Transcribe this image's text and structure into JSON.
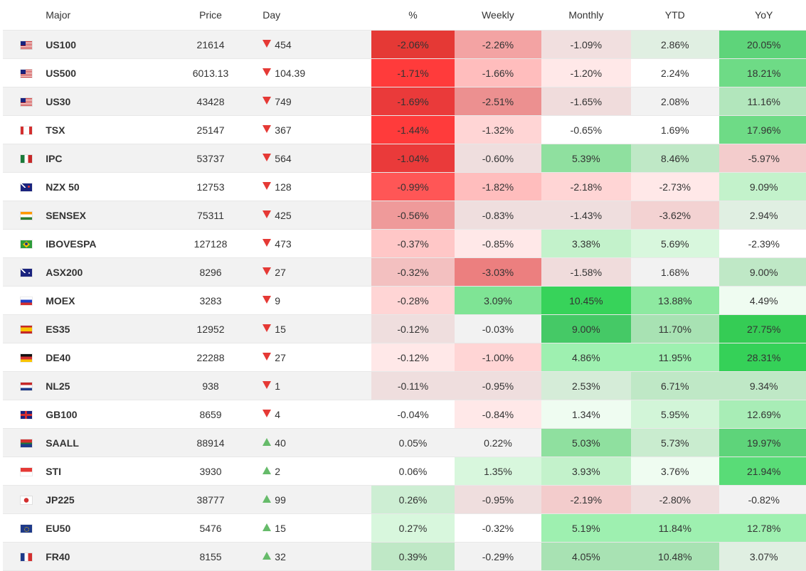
{
  "headers": {
    "name": "Major",
    "price": "Price",
    "day": "Day",
    "pct": "%",
    "weekly": "Weekly",
    "monthly": "Monthly",
    "ytd": "YTD",
    "yoy": "YoY"
  },
  "rows": [
    {
      "flag": "us-flag-icon",
      "name": "US100",
      "price": "21614",
      "dir": "down",
      "day": "454",
      "pct": "-2.06%",
      "weekly": "-2.26%",
      "monthly": "-1.09%",
      "ytd": "2.86%",
      "yoy": "20.05%",
      "colors": {
        "pct": "#e53935",
        "weekly": "#f3a3a3",
        "monthly": "#f1dfdf",
        "ytd": "#e0efe2",
        "yoy": "#5ed47a"
      }
    },
    {
      "flag": "us-flag-icon",
      "name": "US500",
      "price": "6013.13",
      "dir": "down",
      "day": "104.39",
      "pct": "-1.71%",
      "weekly": "-1.66%",
      "monthly": "-1.20%",
      "ytd": "2.24%",
      "yoy": "18.21%",
      "colors": {
        "pct": "#ff3b3b",
        "weekly": "#ffbdbd",
        "monthly": "#ffe8e8",
        "ytd": "#ffffff",
        "yoy": "#6edb86"
      }
    },
    {
      "flag": "us-flag-icon",
      "name": "US30",
      "price": "43428",
      "dir": "down",
      "day": "749",
      "pct": "-1.69%",
      "weekly": "-2.51%",
      "monthly": "-1.65%",
      "ytd": "2.08%",
      "yoy": "11.16%",
      "colors": {
        "pct": "#ea3a3a",
        "weekly": "#ec9090",
        "monthly": "#f0dcdc",
        "ytd": "#f2f2f2",
        "yoy": "#b2e6bc"
      }
    },
    {
      "flag": "ca-flag-icon",
      "name": "TSX",
      "price": "25147",
      "dir": "down",
      "day": "367",
      "pct": "-1.44%",
      "weekly": "-1.32%",
      "monthly": "-0.65%",
      "ytd": "1.69%",
      "yoy": "17.96%",
      "colors": {
        "pct": "#ff3b3b",
        "weekly": "#ffd5d5",
        "monthly": "#ffffff",
        "ytd": "#ffffff",
        "yoy": "#6edb86"
      }
    },
    {
      "flag": "mx-flag-icon",
      "name": "IPC",
      "price": "53737",
      "dir": "down",
      "day": "564",
      "pct": "-1.04%",
      "weekly": "-0.60%",
      "monthly": "5.39%",
      "ytd": "8.46%",
      "yoy": "-5.97%",
      "colors": {
        "pct": "#ea3a3a",
        "weekly": "#efdede",
        "monthly": "#8fe09f",
        "ytd": "#bfe8c6",
        "yoy": "#f3cccc"
      }
    },
    {
      "flag": "nz-flag-icon",
      "name": "NZX 50",
      "price": "12753",
      "dir": "down",
      "day": "128",
      "pct": "-0.99%",
      "weekly": "-1.82%",
      "monthly": "-2.18%",
      "ytd": "-2.73%",
      "yoy": "9.09%",
      "colors": {
        "pct": "#ff5656",
        "weekly": "#ffbdbd",
        "monthly": "#ffd5d5",
        "ytd": "#ffe8e8",
        "yoy": "#c3f2cb"
      }
    },
    {
      "flag": "in-flag-icon",
      "name": "SENSEX",
      "price": "75311",
      "dir": "down",
      "day": "425",
      "pct": "-0.56%",
      "weekly": "-0.83%",
      "monthly": "-1.43%",
      "ytd": "-3.62%",
      "yoy": "2.94%",
      "colors": {
        "pct": "#ef9a9a",
        "weekly": "#efdede",
        "monthly": "#efdede",
        "ytd": "#f3d2d2",
        "yoy": "#e0efe2"
      }
    },
    {
      "flag": "br-flag-icon",
      "name": "IBOVESPA",
      "price": "127128",
      "dir": "down",
      "day": "473",
      "pct": "-0.37%",
      "weekly": "-0.85%",
      "monthly": "3.38%",
      "ytd": "5.69%",
      "yoy": "-2.39%",
      "colors": {
        "pct": "#ffc7c7",
        "weekly": "#ffe8e8",
        "monthly": "#c3f2cb",
        "ytd": "#d8f7dd",
        "yoy": "#ffffff"
      }
    },
    {
      "flag": "au-flag-icon",
      "name": "ASX200",
      "price": "8296",
      "dir": "down",
      "day": "27",
      "pct": "-0.32%",
      "weekly": "-3.03%",
      "monthly": "-1.58%",
      "ytd": "1.68%",
      "yoy": "9.00%",
      "colors": {
        "pct": "#f3c0c0",
        "weekly": "#ec7f7f",
        "monthly": "#f0dcdc",
        "ytd": "#f2f2f2",
        "yoy": "#bfe8c6"
      }
    },
    {
      "flag": "ru-flag-icon",
      "name": "MOEX",
      "price": "3283",
      "dir": "down",
      "day": "9",
      "pct": "-0.28%",
      "weekly": "3.09%",
      "monthly": "10.45%",
      "ytd": "13.88%",
      "yoy": "4.49%",
      "colors": {
        "pct": "#ffd5d5",
        "weekly": "#7fe495",
        "monthly": "#37d35a",
        "ytd": "#8ee9a1",
        "yoy": "#effcf1"
      }
    },
    {
      "flag": "es-flag-icon",
      "name": "ES35",
      "price": "12952",
      "dir": "down",
      "day": "15",
      "pct": "-0.12%",
      "weekly": "-0.03%",
      "monthly": "9.00%",
      "ytd": "11.70%",
      "yoy": "27.75%",
      "colors": {
        "pct": "#efdede",
        "weekly": "#f2f2f2",
        "monthly": "#45c966",
        "ytd": "#a8e2b3",
        "yoy": "#35cc55"
      }
    },
    {
      "flag": "de-flag-icon",
      "name": "DE40",
      "price": "22288",
      "dir": "down",
      "day": "27",
      "pct": "-0.12%",
      "weekly": "-1.00%",
      "monthly": "4.86%",
      "ytd": "11.95%",
      "yoy": "28.31%",
      "colors": {
        "pct": "#ffe8e8",
        "weekly": "#ffd5d5",
        "monthly": "#9ef0b0",
        "ytd": "#9ef0b0",
        "yoy": "#35d158"
      }
    },
    {
      "flag": "nl-flag-icon",
      "name": "NL25",
      "price": "938",
      "dir": "down",
      "day": "1",
      "pct": "-0.11%",
      "weekly": "-0.95%",
      "monthly": "2.53%",
      "ytd": "6.71%",
      "yoy": "9.34%",
      "colors": {
        "pct": "#efdede",
        "weekly": "#efdede",
        "monthly": "#d5ecd8",
        "ytd": "#bfe8c6",
        "yoy": "#bfe8c6"
      }
    },
    {
      "flag": "gb-flag-icon",
      "name": "GB100",
      "price": "8659",
      "dir": "down",
      "day": "4",
      "pct": "-0.04%",
      "weekly": "-0.84%",
      "monthly": "1.34%",
      "ytd": "5.95%",
      "yoy": "12.69%",
      "colors": {
        "pct": "#ffffff",
        "weekly": "#ffe8e8",
        "monthly": "#effcf1",
        "ytd": "#d2f5d8",
        "yoy": "#a8edb6"
      }
    },
    {
      "flag": "za-flag-icon",
      "name": "SAALL",
      "price": "88914",
      "dir": "up",
      "day": "40",
      "pct": "0.05%",
      "weekly": "0.22%",
      "monthly": "5.03%",
      "ytd": "5.73%",
      "yoy": "19.97%",
      "colors": {
        "pct": "#f2f2f2",
        "weekly": "#f2f2f2",
        "monthly": "#8fe09f",
        "ytd": "#c9eccf",
        "yoy": "#5ed47a"
      }
    },
    {
      "flag": "sg-flag-icon",
      "name": "STI",
      "price": "3930",
      "dir": "up",
      "day": "2",
      "pct": "0.06%",
      "weekly": "1.35%",
      "monthly": "3.93%",
      "ytd": "3.76%",
      "yoy": "21.94%",
      "colors": {
        "pct": "#ffffff",
        "weekly": "#d8f7dd",
        "monthly": "#c3f2cb",
        "ytd": "#effcf1",
        "yoy": "#59dc77"
      }
    },
    {
      "flag": "jp-flag-icon",
      "name": "JP225",
      "price": "38777",
      "dir": "up",
      "day": "99",
      "pct": "0.26%",
      "weekly": "-0.95%",
      "monthly": "-2.19%",
      "ytd": "-2.80%",
      "yoy": "-0.82%",
      "colors": {
        "pct": "#cdeed3",
        "weekly": "#efdede",
        "monthly": "#f3cccc",
        "ytd": "#efdede",
        "yoy": "#f2f2f2"
      }
    },
    {
      "flag": "eu-flag-icon",
      "name": "EU50",
      "price": "5476",
      "dir": "up",
      "day": "15",
      "pct": "0.27%",
      "weekly": "-0.32%",
      "monthly": "5.19%",
      "ytd": "11.84%",
      "yoy": "12.78%",
      "colors": {
        "pct": "#d8f7dd",
        "weekly": "#ffffff",
        "monthly": "#9ef0b0",
        "ytd": "#9ef0b0",
        "yoy": "#9ef0b0"
      }
    },
    {
      "flag": "fr-flag-icon",
      "name": "FR40",
      "price": "8155",
      "dir": "up",
      "day": "32",
      "pct": "0.39%",
      "weekly": "-0.29%",
      "monthly": "4.05%",
      "ytd": "10.48%",
      "yoy": "3.07%",
      "colors": {
        "pct": "#bfe8c6",
        "weekly": "#f2f2f2",
        "monthly": "#a8e2b3",
        "ytd": "#a8e2b3",
        "yoy": "#e0efe2"
      }
    }
  ],
  "colors": {
    "down_arrow": "#e53935",
    "up_arrow": "#66bb6a",
    "row_alt": "#f2f2f2",
    "border": "#e8e8e8"
  }
}
